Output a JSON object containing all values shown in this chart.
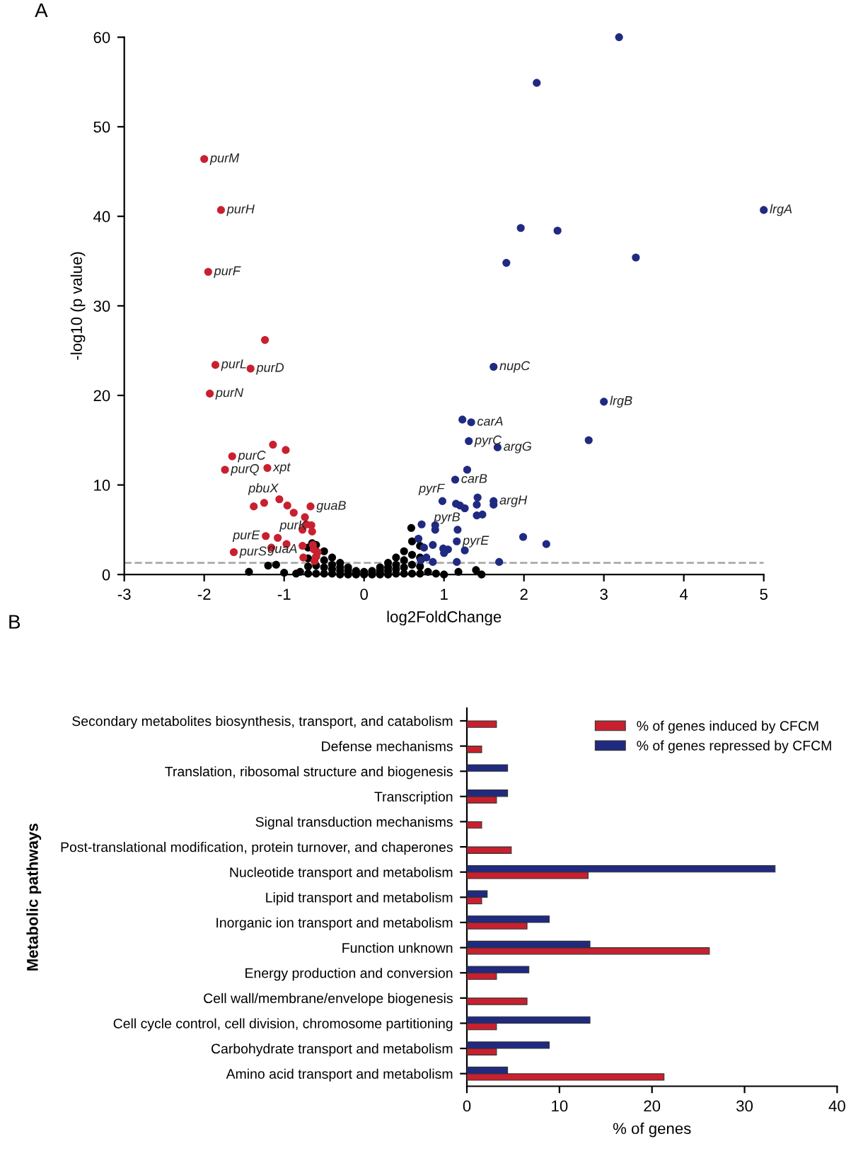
{
  "chart_data": [
    {
      "type": "scatter",
      "title": "A",
      "xlabel": "log2FoldChange",
      "ylabel": "-log10 (p value)",
      "xlim": [
        -3,
        5
      ],
      "ylim": [
        0,
        60
      ],
      "xticks": [
        -3,
        -2,
        -1,
        0,
        1,
        2,
        3,
        4,
        5
      ],
      "yticks": [
        0,
        10,
        20,
        30,
        40,
        50,
        60
      ],
      "grid": false,
      "marker": "circle",
      "ref_lines": [
        {
          "axis": "y",
          "value": 1.3,
          "color": "#aaaaaa",
          "line_style": "dashed"
        }
      ],
      "series": [
        {
          "color": "#000000",
          "x": [
            -0.7,
            -0.7,
            -0.7,
            -0.7,
            -0.6,
            -0.6,
            -0.6,
            -0.6,
            -0.5,
            -0.5,
            -0.5,
            -0.5,
            -0.4,
            -0.4,
            -0.4,
            -0.4,
            -0.3,
            -0.3,
            -0.3,
            -0.3,
            -0.2,
            -0.2,
            -0.2,
            -0.2,
            -0.1,
            -0.1,
            -0.1,
            0,
            0,
            0.1,
            0.1,
            0.1,
            0.2,
            0.2,
            0.2,
            0.2,
            0.3,
            0.3,
            0.3,
            0.3,
            0.4,
            0.4,
            0.4,
            0.4,
            0.5,
            0.5,
            0.5,
            0.5,
            0.6,
            0.6,
            0.6,
            0.6,
            0.7,
            0.7,
            0.7,
            0.7,
            -1.44,
            -1.0,
            -1.2,
            -1.1,
            -0.65,
            0.59,
            1.0,
            1.18,
            1.4,
            1.47,
            -0.8,
            0.8,
            -0.85,
            0.9
          ],
          "values": [
            3.0,
            1.8,
            0.9,
            0.1,
            3.3,
            2.0,
            1.0,
            0.1,
            2.6,
            1.6,
            0.8,
            0.1,
            1.9,
            1.1,
            0.6,
            0.1,
            1.3,
            0.8,
            0.4,
            0.0,
            0.8,
            0.5,
            0.2,
            0.0,
            0.4,
            0.2,
            0.0,
            0.3,
            0.0,
            0.4,
            0.2,
            0.0,
            0.8,
            0.5,
            0.2,
            0.0,
            1.3,
            0.8,
            0.4,
            0.0,
            1.9,
            1.1,
            0.6,
            0.1,
            2.6,
            1.6,
            0.8,
            0.1,
            3.7,
            2.2,
            1.1,
            0.1,
            3.2,
            1.9,
            0.9,
            0.1,
            0.3,
            0.2,
            1.0,
            1.1,
            3.5,
            5.2,
            0.0,
            0.3,
            0.5,
            0.0,
            0.3,
            0.3,
            0.1,
            0.1
          ]
        },
        {
          "color": "#c8202f",
          "x": [
            -2.0,
            -1.79,
            -1.95,
            -1.24,
            -1.86,
            -1.42,
            -1.93,
            -1.14,
            -0.98,
            -1.65,
            -1.74,
            -1.21,
            -1.38,
            -1.25,
            -1.06,
            -0.96,
            -0.88,
            -0.67,
            -0.74,
            -0.72,
            -0.66,
            -0.77,
            -0.65,
            -1.23,
            -1.08,
            -1.16,
            -0.97,
            -1.63,
            -0.76,
            -0.77,
            -0.64,
            -0.62,
            -0.6,
            -0.58,
            -0.63
          ],
          "values": [
            46.4,
            40.7,
            33.8,
            26.2,
            23.4,
            23.0,
            20.2,
            14.5,
            13.9,
            13.2,
            11.7,
            11.9,
            7.6,
            8.0,
            8.4,
            7.7,
            6.9,
            7.6,
            6.4,
            5.6,
            5.5,
            5.0,
            4.8,
            4.3,
            4.1,
            3.0,
            3.4,
            2.5,
            1.9,
            3.2,
            3.3,
            1.5,
            2.0,
            2.5,
            2.8
          ]
        },
        {
          "color": "#1f2a80",
          "x": [
            3.19,
            2.16,
            5.0,
            1.96,
            2.42,
            3.4,
            1.78,
            1.62,
            3.0,
            1.23,
            1.34,
            1.31,
            2.81,
            1.67,
            1.29,
            1.14,
            0.98,
            1.15,
            1.2,
            1.26,
            1.42,
            1.41,
            1.62,
            1.62,
            1.41,
            1.48,
            1.17,
            1.16,
            1.26,
            1.99,
            2.28,
            1.69,
            1.16,
            0.89,
            0.89,
            0.72,
            0.86,
            0.99,
            1.05,
            1.0,
            0.75,
            0.68,
            0.71,
            0.78,
            0.86
          ],
          "values": [
            60.0,
            54.9,
            40.7,
            38.7,
            38.4,
            35.4,
            34.8,
            23.2,
            19.3,
            17.3,
            17.0,
            14.9,
            15.0,
            14.2,
            11.7,
            10.6,
            8.2,
            7.9,
            7.7,
            7.4,
            8.6,
            7.8,
            8.2,
            7.8,
            6.6,
            6.7,
            5.0,
            3.7,
            2.7,
            4.2,
            3.4,
            1.4,
            1.4,
            5.5,
            5.0,
            5.6,
            3.3,
            2.9,
            2.8,
            2.4,
            3.0,
            4.0,
            1.6,
            1.9,
            1.4
          ]
        }
      ],
      "annotations": [
        {
          "text": "purM",
          "x": -2.0,
          "y": 46.4
        },
        {
          "text": "purH",
          "x": -1.79,
          "y": 40.7
        },
        {
          "text": "purF",
          "x": -1.95,
          "y": 33.8
        },
        {
          "text": "purL",
          "x": -1.86,
          "y": 23.4
        },
        {
          "text": "purD",
          "x": -1.42,
          "y": 23.0
        },
        {
          "text": "purN",
          "x": -1.93,
          "y": 20.2
        },
        {
          "text": "purC",
          "x": -1.65,
          "y": 13.2
        },
        {
          "text": "purQ",
          "x": -1.74,
          "y": 11.7
        },
        {
          "text": "xpt",
          "x": -1.21,
          "y": 11.9
        },
        {
          "text": "pbuX",
          "x": -1.25,
          "y": 8.0
        },
        {
          "text": "guaB",
          "x": -0.67,
          "y": 7.6
        },
        {
          "text": "purK",
          "x": -1.08,
          "y": 4.1
        },
        {
          "text": "purE",
          "x": -1.23,
          "y": 4.3
        },
        {
          "text": "purS",
          "x": -1.63,
          "y": 2.5
        },
        {
          "text": "guaA",
          "x": -0.76,
          "y": 1.9
        },
        {
          "text": "lrgA",
          "x": 5.0,
          "y": 40.7
        },
        {
          "text": "nupC",
          "x": 1.62,
          "y": 23.2
        },
        {
          "text": "lrgB",
          "x": 3.0,
          "y": 19.3
        },
        {
          "text": "carA",
          "x": 1.34,
          "y": 17.0
        },
        {
          "text": "pyrC",
          "x": 1.31,
          "y": 14.9
        },
        {
          "text": "argG",
          "x": 1.67,
          "y": 14.2
        },
        {
          "text": "carB",
          "x": 1.14,
          "y": 10.6
        },
        {
          "text": "pyrF",
          "x": 0.98,
          "y": 8.2
        },
        {
          "text": "argH",
          "x": 1.62,
          "y": 8.2
        },
        {
          "text": "pyrB",
          "x": 1.17,
          "y": 5.0
        },
        {
          "text": "pyrE",
          "x": 1.16,
          "y": 3.7
        }
      ]
    },
    {
      "type": "bar",
      "title": "B",
      "orientation": "horizontal",
      "xlabel": "% of genes",
      "ylabel": "Metabolic pathways",
      "xlim": [
        0,
        40
      ],
      "xticks": [
        0,
        10,
        20,
        30,
        40
      ],
      "grid": false,
      "legend": "top right",
      "categories": [
        "Secondary metabolites biosynthesis, transport, and catabolism",
        "Defense mechanisms",
        "Translation, ribosomal structure and biogenesis",
        "Transcription",
        "Signal transduction mechanisms",
        "Post-translational modification, protein turnover, and chaperones",
        "Nucleotide transport and metabolism",
        "Lipid transport and metabolism",
        "Inorganic ion transport and metabolism",
        "Function unknown",
        "Energy production and conversion",
        "Cell wall/membrane/envelope biogenesis",
        "Cell cycle control, cell division, chromosome partitioning",
        "Carbohydrate transport and metabolism",
        "Amino acid transport and metabolism"
      ],
      "series": [
        {
          "name": "% of genes induced by CFCM",
          "color": "#c8202f",
          "values": [
            3.2,
            1.6,
            null,
            3.2,
            1.6,
            4.8,
            13.1,
            1.6,
            6.5,
            26.2,
            3.2,
            6.5,
            3.2,
            3.2,
            21.3
          ]
        },
        {
          "name": "% of genes repressed by CFCM",
          "color": "#1f2a80",
          "values": [
            null,
            null,
            4.4,
            4.4,
            null,
            null,
            33.3,
            2.2,
            8.9,
            13.3,
            6.7,
            null,
            13.3,
            8.9,
            4.4
          ]
        }
      ]
    }
  ]
}
